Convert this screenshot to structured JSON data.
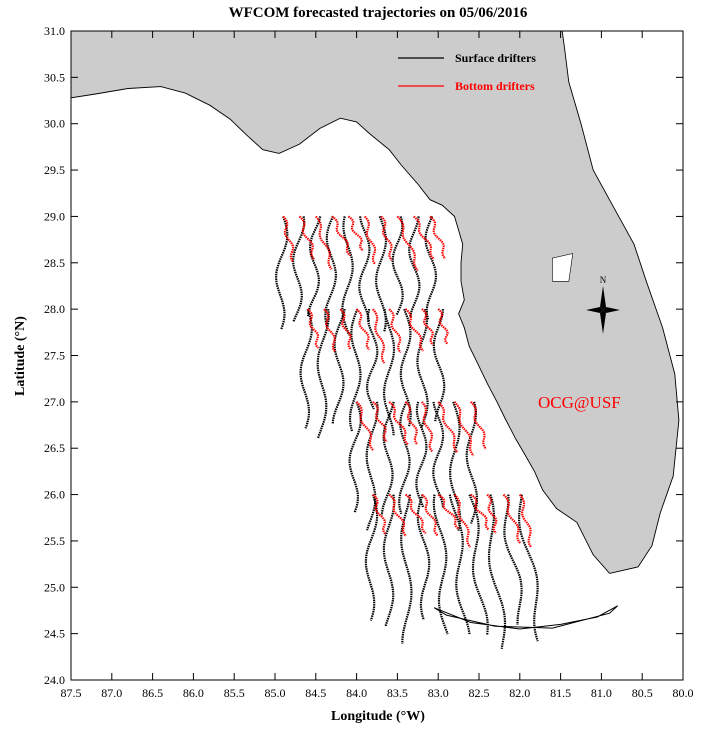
{
  "title": "WFCOM forecasted trajectories on 05/06/2016",
  "xlabel": "Longitude (°W)",
  "ylabel": "Latitude (°N)",
  "x_ticks": [
    "87.5",
    "87.0",
    "86.5",
    "86.0",
    "85.5",
    "85.0",
    "84.5",
    "84.0",
    "83.5",
    "83.0",
    "82.5",
    "82.0",
    "81.5",
    "81.0",
    "80.5",
    "80.0"
  ],
  "y_ticks": [
    "31.0",
    "30.5",
    "30.0",
    "29.5",
    "29.0",
    "28.5",
    "28.0",
    "27.5",
    "27.0",
    "26.5",
    "26.0",
    "25.5",
    "25.0",
    "24.5",
    "24.0"
  ],
  "legend": {
    "surface_label": "Surface drifters",
    "bottom_label": "Bottom drifters",
    "surface_color": "#000000",
    "bottom_color": "#ff0000"
  },
  "compass_label": "N",
  "watermark": "OCG@USF",
  "colors": {
    "land": "#cccccc",
    "water": "#ffffff",
    "watermark": "#ff0000"
  },
  "map_extent": {
    "lon_min": -87.5,
    "lon_max": -80.0,
    "lat_min": 24.0,
    "lat_max": 31.0
  },
  "chart_data": {
    "type": "map",
    "xlim": [
      -87.5,
      -80.0
    ],
    "ylim": [
      24.0,
      31.0
    ],
    "grid": false,
    "legend_position": "top-right",
    "release_rows": [
      {
        "lat": 29.0,
        "lons": [
          -84.9,
          -84.7,
          -84.5,
          -84.3,
          -84.1,
          -83.9,
          -83.7,
          -83.5,
          -83.3,
          -83.1
        ]
      },
      {
        "lat": 28.0,
        "lons": [
          -84.6,
          -84.4,
          -84.2,
          -84.0,
          -83.8,
          -83.6,
          -83.4,
          -83.2,
          -83.0
        ]
      },
      {
        "lat": 27.0,
        "lons": [
          -84.0,
          -83.8,
          -83.6,
          -83.4,
          -83.2,
          -83.0,
          -82.8,
          -82.6
        ]
      },
      {
        "lat": 26.0,
        "lons": [
          -83.8,
          -83.6,
          -83.4,
          -83.2,
          -83.0,
          -82.8,
          -82.6,
          -82.4,
          -82.2,
          -82.0
        ]
      }
    ]
  }
}
